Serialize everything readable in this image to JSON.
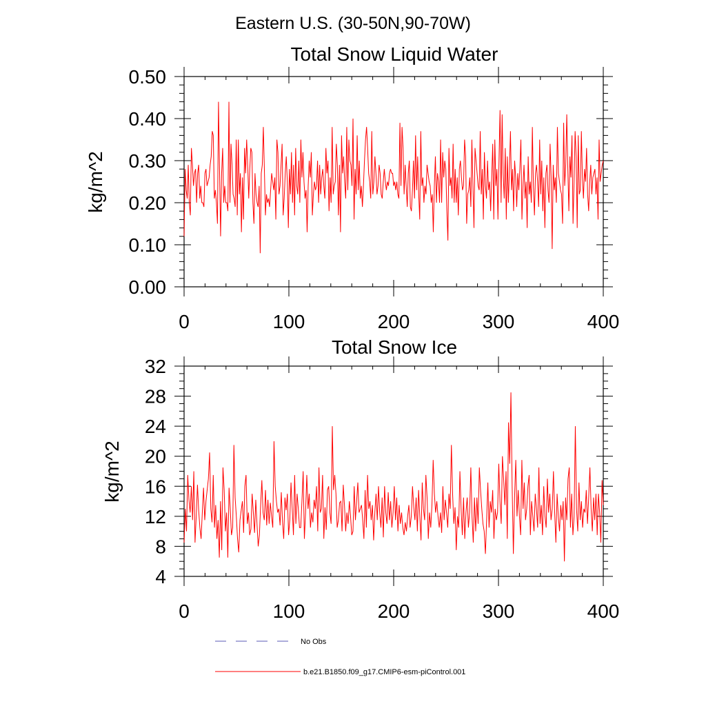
{
  "header": {
    "region_title": "Eastern U.S. (30-50N,90-70W)"
  },
  "chart_data": [
    {
      "type": "line",
      "title": "Total Snow Liquid Water",
      "ylabel": "kg/m^2",
      "xlabel": "",
      "xlim": [
        0,
        400
      ],
      "ylim": [
        0.0,
        0.5
      ],
      "xticks": [
        0,
        100,
        200,
        300,
        400
      ],
      "xtick_labels": [
        "0",
        "100",
        "200",
        "300",
        "400"
      ],
      "yticks": [
        0.0,
        0.1,
        0.2,
        0.3,
        0.4,
        0.5
      ],
      "ytick_labels": [
        "0.00",
        "0.10",
        "0.20",
        "0.30",
        "0.40",
        "0.50"
      ],
      "grid": false,
      "series": [
        {
          "name": "b.e21.B1850.f09_g17.CMIP6-esm-piControl.001",
          "color": "#ff0000",
          "values": [
            0.12,
            0.28,
            0.23,
            0.21,
            0.29,
            0.2,
            0.17,
            0.33,
            0.29,
            0.24,
            0.27,
            0.28,
            0.2,
            0.27,
            0.29,
            0.21,
            0.24,
            0.2,
            0.2,
            0.19,
            0.27,
            0.28,
            0.24,
            0.25,
            0.26,
            0.29,
            0.31,
            0.37,
            0.36,
            0.21,
            0.23,
            0.2,
            0.15,
            0.44,
            0.28,
            0.12,
            0.27,
            0.33,
            0.2,
            0.24,
            0.2,
            0.2,
            0.18,
            0.44,
            0.2,
            0.34,
            0.29,
            0.22,
            0.21,
            0.19,
            0.35,
            0.17,
            0.35,
            0.22,
            0.27,
            0.13,
            0.26,
            0.16,
            0.33,
            0.27,
            0.35,
            0.29,
            0.21,
            0.28,
            0.33,
            0.32,
            0.2,
            0.15,
            0.27,
            0.22,
            0.2,
            0.19,
            0.24,
            0.08,
            0.27,
            0.29,
            0.38,
            0.28,
            0.17,
            0.22,
            0.2,
            0.21,
            0.19,
            0.23,
            0.27,
            0.25,
            0.23,
            0.26,
            0.16,
            0.35,
            0.32,
            0.22,
            0.24,
            0.29,
            0.34,
            0.17,
            0.21,
            0.27,
            0.31,
            0.25,
            0.14,
            0.28,
            0.22,
            0.32,
            0.2,
            0.29,
            0.17,
            0.33,
            0.24,
            0.22,
            0.3,
            0.2,
            0.35,
            0.26,
            0.32,
            0.25,
            0.21,
            0.23,
            0.13,
            0.24,
            0.3,
            0.26,
            0.32,
            0.17,
            0.22,
            0.25,
            0.23,
            0.24,
            0.3,
            0.2,
            0.29,
            0.22,
            0.26,
            0.28,
            0.24,
            0.21,
            0.33,
            0.27,
            0.3,
            0.18,
            0.26,
            0.2,
            0.38,
            0.22,
            0.24,
            0.25,
            0.34,
            0.29,
            0.17,
            0.29,
            0.13,
            0.36,
            0.27,
            0.31,
            0.25,
            0.21,
            0.38,
            0.23,
            0.35,
            0.3,
            0.29,
            0.24,
            0.4,
            0.16,
            0.28,
            0.22,
            0.36,
            0.23,
            0.3,
            0.21,
            0.24,
            0.19,
            0.24,
            0.3,
            0.35,
            0.38,
            0.33,
            0.27,
            0.25,
            0.21,
            0.37,
            0.22,
            0.25,
            0.31,
            0.27,
            0.22,
            0.24,
            0.29,
            0.27,
            0.22,
            0.21,
            0.25,
            0.28,
            0.25,
            0.23,
            0.25,
            0.24,
            0.27,
            0.28,
            0.27,
            0.27,
            0.24,
            0.25,
            0.23,
            0.25,
            0.22,
            0.21,
            0.39,
            0.24,
            0.38,
            0.33,
            0.22,
            0.29,
            0.24,
            0.19,
            0.27,
            0.3,
            0.19,
            0.18,
            0.23,
            0.3,
            0.21,
            0.36,
            0.23,
            0.31,
            0.22,
            0.16,
            0.37,
            0.24,
            0.26,
            0.2,
            0.24,
            0.22,
            0.29,
            0.27,
            0.25,
            0.24,
            0.2,
            0.22,
            0.13,
            0.24,
            0.31,
            0.2,
            0.27,
            0.25,
            0.2,
            0.35,
            0.2,
            0.32,
            0.26,
            0.3,
            0.28,
            0.18,
            0.11,
            0.33,
            0.24,
            0.26,
            0.21,
            0.34,
            0.2,
            0.28,
            0.2,
            0.26,
            0.17,
            0.28,
            0.3,
            0.26,
            0.23,
            0.24,
            0.35,
            0.31,
            0.15,
            0.22,
            0.23,
            0.26,
            0.19,
            0.35,
            0.24,
            0.14,
            0.33,
            0.3,
            0.27,
            0.24,
            0.23,
            0.37,
            0.22,
            0.28,
            0.16,
            0.32,
            0.24,
            0.21,
            0.3,
            0.23,
            0.25,
            0.18,
            0.26,
            0.34,
            0.16,
            0.35,
            0.24,
            0.28,
            0.16,
            0.3,
            0.42,
            0.2,
            0.41,
            0.27,
            0.21,
            0.33,
            0.16,
            0.31,
            0.2,
            0.28,
            0.37,
            0.23,
            0.28,
            0.18,
            0.3,
            0.26,
            0.19,
            0.27,
            0.23,
            0.28,
            0.35,
            0.16,
            0.24,
            0.29,
            0.21,
            0.25,
            0.14,
            0.31,
            0.22,
            0.25,
            0.2,
            0.38,
            0.24,
            0.17,
            0.27,
            0.29,
            0.25,
            0.19,
            0.35,
            0.22,
            0.3,
            0.18,
            0.26,
            0.14,
            0.27,
            0.29,
            0.23,
            0.2,
            0.34,
            0.26,
            0.09,
            0.29,
            0.23,
            0.26,
            0.2,
            0.38,
            0.27,
            0.25,
            0.23,
            0.22,
            0.15,
            0.39,
            0.24,
            0.29,
            0.41,
            0.28,
            0.18,
            0.31,
            0.26,
            0.36,
            0.15,
            0.25,
            0.37,
            0.31,
            0.14,
            0.36,
            0.22,
            0.23,
            0.37,
            0.26,
            0.21,
            0.28,
            0.25,
            0.33,
            0.22,
            0.18,
            0.25,
            0.29,
            0.22,
            0.26,
            0.27,
            0.28,
            0.22,
            0.26,
            0.16,
            0.35,
            0.25,
            0.27,
            0.29,
            0.3
          ]
        },
        {
          "name": "No Obs",
          "color": "#5a5ab4",
          "style": "dashed",
          "values": []
        }
      ]
    },
    {
      "type": "line",
      "title": "Total Snow Ice",
      "ylabel": "kg/m^2",
      "xlabel": "",
      "xlim": [
        0,
        400
      ],
      "ylim": [
        4,
        32
      ],
      "xticks": [
        0,
        100,
        200,
        300,
        400
      ],
      "xtick_labels": [
        "0",
        "100",
        "200",
        "300",
        "400"
      ],
      "yticks": [
        4,
        8,
        12,
        16,
        20,
        24,
        28,
        32
      ],
      "ytick_labels": [
        "4",
        "8",
        "12",
        "16",
        "20",
        "24",
        "28",
        "32"
      ],
      "grid": false,
      "series": [
        {
          "name": "b.e21.B1850.f09_g17.CMIP6-esm-piControl.001",
          "color": "#ff0000",
          "values": [
            8.5,
            13,
            10,
            17.5,
            14.2,
            12.5,
            16,
            11.5,
            18,
            8.5,
            12,
            16.2,
            12.8,
            10.5,
            9,
            12.5,
            15.8,
            11.5,
            14,
            15.5,
            17,
            20.5,
            13,
            11.2,
            17.5,
            10.5,
            13.5,
            9,
            11.5,
            6.5,
            14,
            7.5,
            18.5,
            15.5,
            10,
            12.5,
            6.5,
            15.8,
            13,
            9.5,
            10.5,
            21.5,
            14.5,
            12,
            9,
            7.2,
            11.5,
            12.8,
            14,
            9.8,
            16,
            17.5,
            11,
            12.5,
            9.5,
            10.3,
            15,
            12.5,
            9.8,
            14.2,
            11,
            8,
            9.5,
            13.5,
            16.8,
            12.5,
            11.5,
            15.5,
            10.8,
            14.2,
            11,
            13.8,
            12,
            10.5,
            22,
            16,
            14,
            12.5,
            13,
            10.8,
            15.2,
            11.3,
            9,
            14.5,
            12.8,
            15,
            9.5,
            11.5,
            16.5,
            13,
            9.5,
            17.5,
            11,
            15,
            13,
            10.5,
            10.5,
            14,
            18,
            9,
            12.5,
            17.5,
            13,
            15,
            10.5,
            12.5,
            11.2,
            14.2,
            13,
            16,
            10,
            18.5,
            12.5,
            13,
            17.5,
            9,
            13.2,
            10.2,
            15.5,
            16,
            12.5,
            11,
            24,
            15.5,
            17.5,
            15,
            10.5,
            11.5,
            13.8,
            14,
            10,
            16.2,
            13.5,
            10,
            12.5,
            11,
            14,
            12,
            9.5,
            10,
            16,
            11.5,
            14,
            16.5,
            12.5,
            13,
            13.5,
            11.5,
            9,
            15.5,
            10.5,
            17.5,
            13,
            14,
            11.5,
            13.5,
            8.8,
            12.5,
            15,
            11.5,
            16,
            12.5,
            10.5,
            14.5,
            9.2,
            16,
            12.5,
            11,
            15.2,
            11.5,
            14,
            10.5,
            12.5,
            16,
            11.5,
            14.5,
            10,
            13.5,
            11,
            12.5,
            10.5,
            9.5,
            11.2,
            10,
            12,
            13.5,
            10.5,
            12,
            16,
            13.3,
            11.5,
            14.5,
            10,
            15.5,
            12,
            8.8,
            16.5,
            13,
            11.5,
            17.5,
            14.5,
            9,
            12.5,
            10.5,
            13.5,
            19.5,
            15,
            12.5,
            14,
            12,
            10.5,
            12.5,
            9.8,
            16,
            11.5,
            14.2,
            12.5,
            10.5,
            15,
            13,
            21.5,
            15,
            11,
            13.2,
            7.5,
            12,
            10.5,
            18,
            13,
            9.5,
            14.5,
            9,
            12.5,
            14.5,
            10.5,
            12.5,
            18.5,
            12,
            8.5,
            14.5,
            10,
            14.5,
            11,
            18.5,
            15.5,
            13,
            11,
            10,
            7,
            11.5,
            16.5,
            10.5,
            14,
            12.5,
            15.5,
            9,
            13,
            11.5,
            12.5,
            19,
            14,
            11,
            20,
            17,
            13.5,
            18,
            9,
            24.5,
            19,
            28.5,
            16,
            7,
            14.5,
            19.5,
            12,
            15.5,
            12,
            9.5,
            19.5,
            13,
            16.5,
            11.5,
            13,
            16,
            17.5,
            9.5,
            14,
            12,
            10,
            15,
            13,
            10.5,
            18.5,
            11,
            13.5,
            9.5,
            16,
            12,
            10.5,
            17,
            12.5,
            15,
            11.5,
            13,
            18,
            12.5,
            8.5,
            15,
            12,
            10,
            13.5,
            11.5,
            14,
            6,
            14.5,
            11.5,
            17,
            18.5,
            10.5,
            15,
            9.5,
            12,
            24,
            13,
            10,
            16.5,
            11.5,
            14,
            10.5,
            13,
            12.5,
            15.5,
            11,
            14.5,
            18.5,
            13,
            10,
            14.5,
            11.5,
            15,
            9.5,
            15,
            12.5,
            8.5,
            16.8,
            13.5
          ]
        },
        {
          "name": "No Obs",
          "color": "#5a5ab4",
          "style": "dashed",
          "values": []
        }
      ]
    }
  ],
  "legend": [
    {
      "label": "No Obs",
      "color": "#5a5ab4",
      "style": "dashed"
    },
    {
      "label": "b.e21.B1850.f09_g17.CMIP6-esm-piControl.001",
      "color": "#ff0000",
      "style": "solid"
    }
  ]
}
